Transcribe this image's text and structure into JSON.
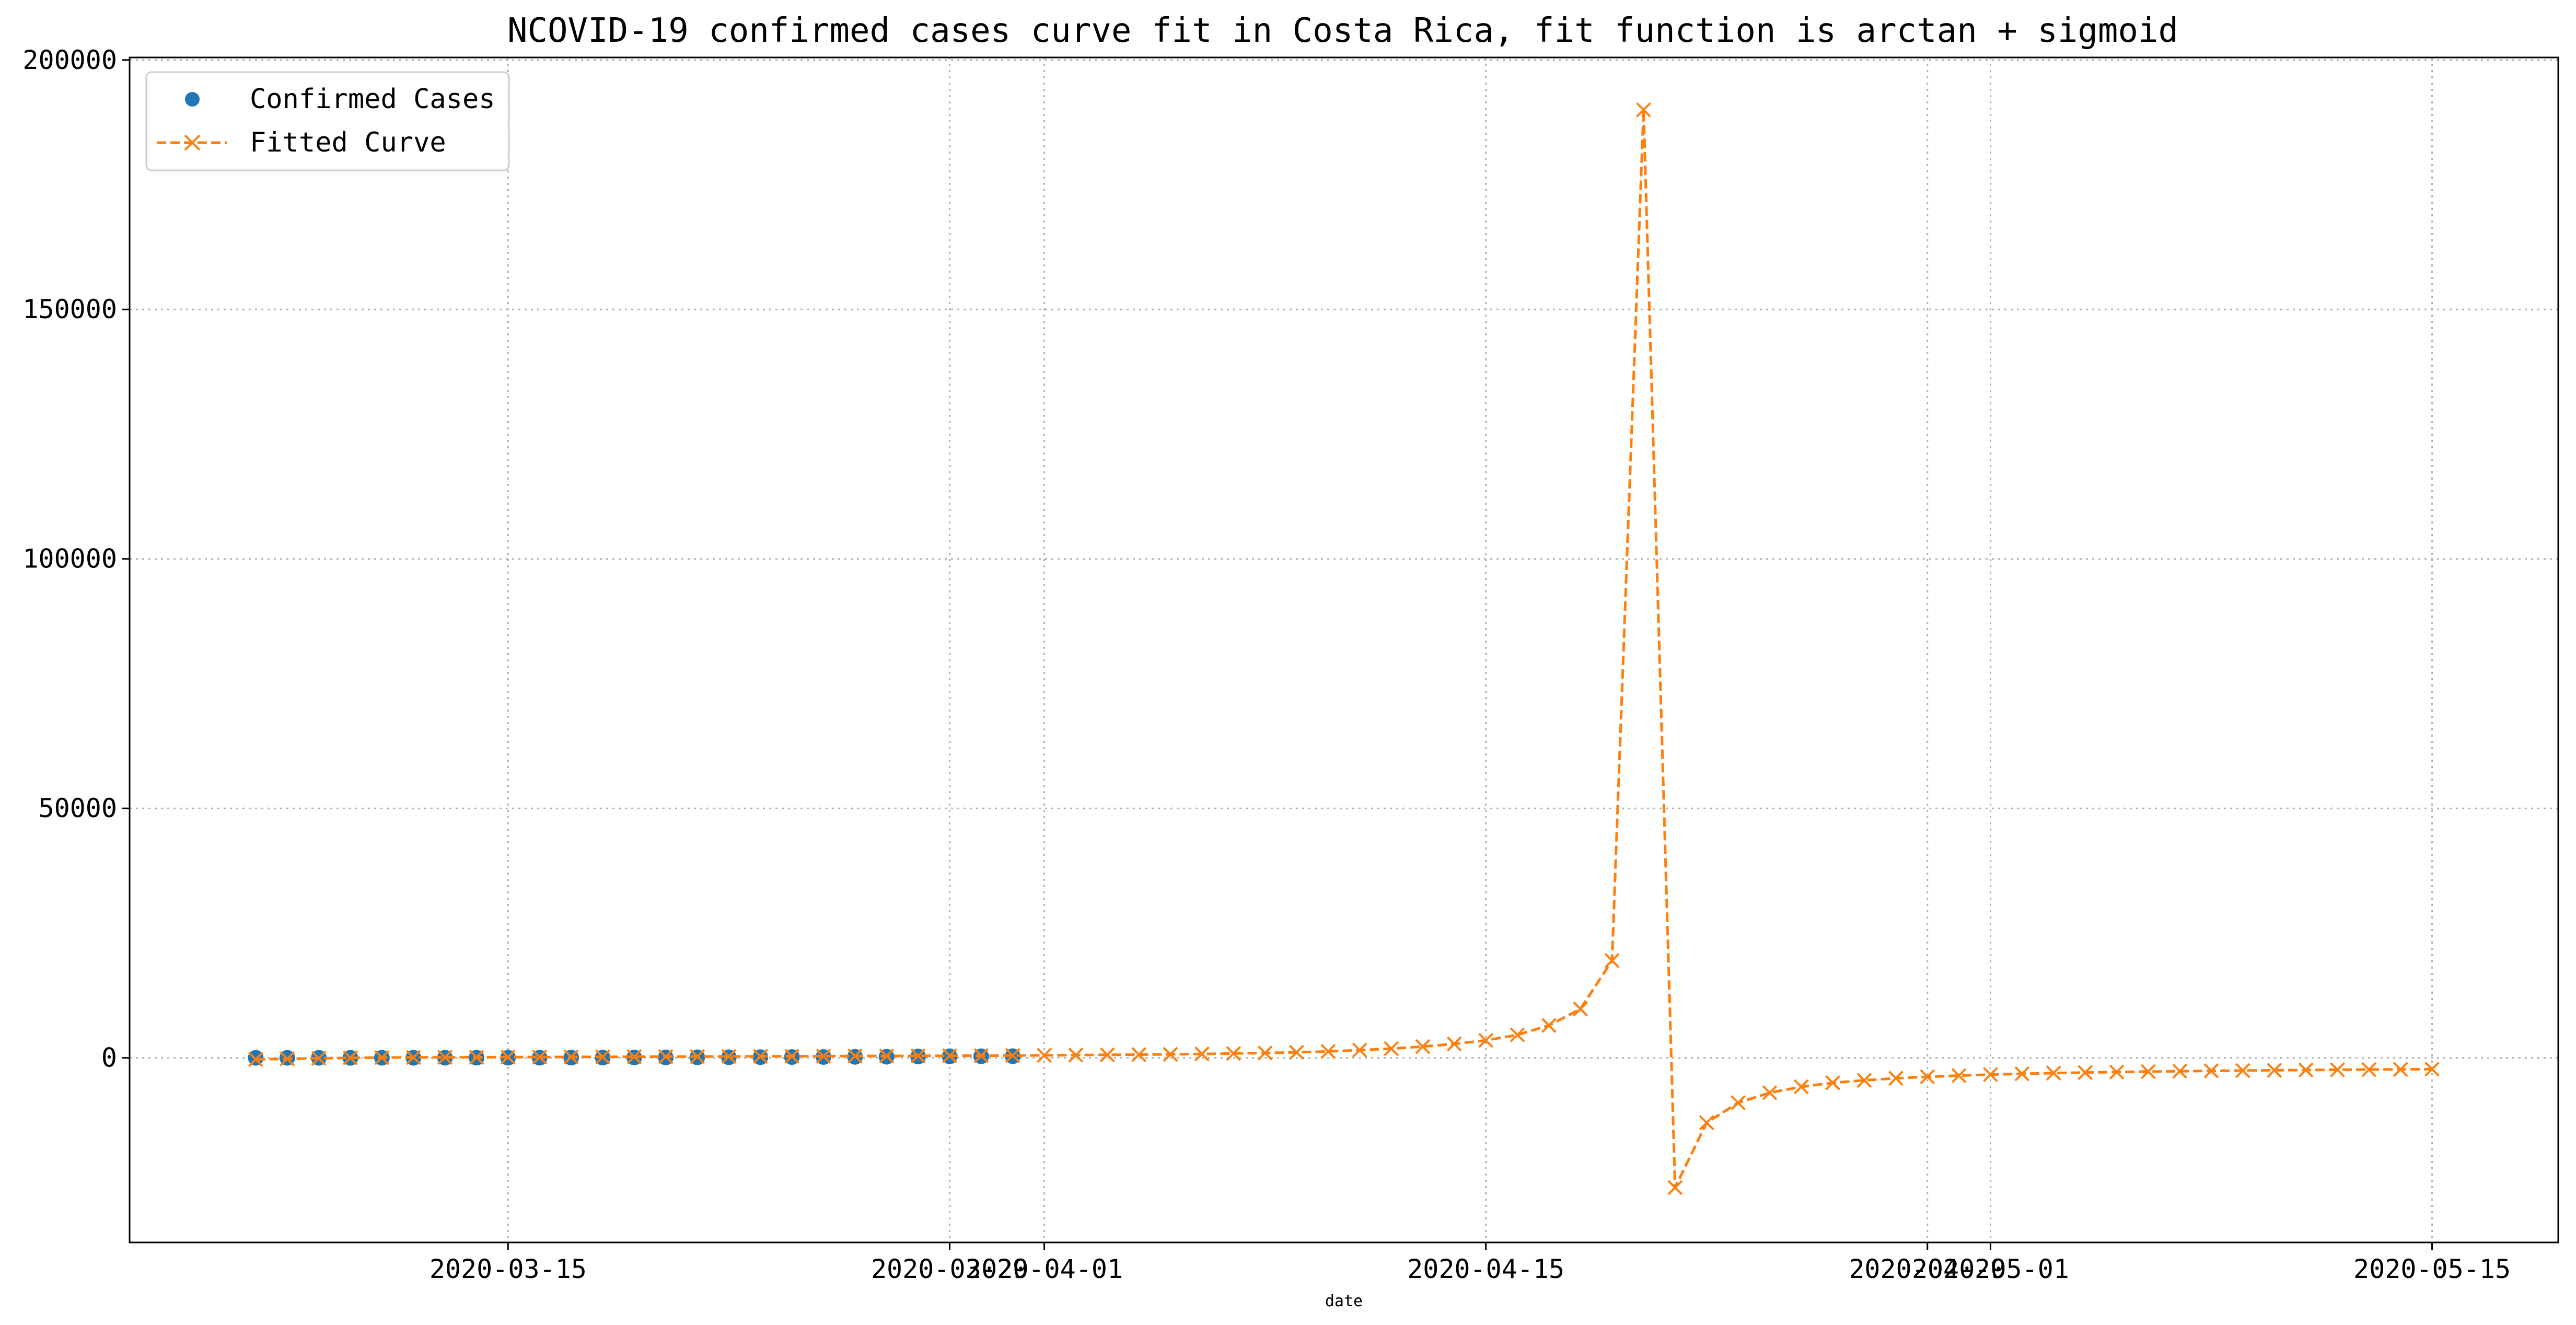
{
  "chart_data": {
    "type": "line",
    "title": "NCOVID-19 confirmed cases curve fit in Costa Rica, fit function is arctan + sigmoid",
    "xlabel": "date",
    "ylabel": "",
    "x_ticks": [
      "2020-03-15",
      "2020-03-29",
      "2020-04-01",
      "2020-04-15",
      "2020-04-29",
      "2020-05-01",
      "2020-05-15"
    ],
    "y_ticks": [
      "0",
      "50000",
      "100000",
      "150000",
      "200000"
    ],
    "xlim": [
      "2020-03-03",
      "2020-05-19"
    ],
    "ylim": [
      -37000,
      200500
    ],
    "grid": true,
    "grid_style": "dotted",
    "legend_position": "top-left",
    "series": [
      {
        "name": "Confirmed Cases",
        "style": "markers",
        "marker": "circle",
        "color": "#1f77b4",
        "x": [
          "2020-03-07",
          "2020-03-08",
          "2020-03-09",
          "2020-03-10",
          "2020-03-11",
          "2020-03-12",
          "2020-03-13",
          "2020-03-14",
          "2020-03-15",
          "2020-03-16",
          "2020-03-17",
          "2020-03-18",
          "2020-03-19",
          "2020-03-20",
          "2020-03-21",
          "2020-03-22",
          "2020-03-23",
          "2020-03-24",
          "2020-03-25",
          "2020-03-26",
          "2020-03-27",
          "2020-03-28",
          "2020-03-29",
          "2020-03-30",
          "2020-03-31"
        ],
        "y": [
          1,
          5,
          9,
          9,
          13,
          22,
          23,
          26,
          27,
          35,
          41,
          50,
          69,
          87,
          113,
          117,
          134,
          158,
          177,
          201,
          231,
          263,
          295,
          314,
          330
        ]
      },
      {
        "name": "Fitted Curve",
        "style": "dashed line with x markers",
        "marker": "x",
        "color": "#ff7f0e",
        "x": [
          "2020-03-07",
          "2020-03-08",
          "2020-03-09",
          "2020-03-10",
          "2020-03-11",
          "2020-03-12",
          "2020-03-13",
          "2020-03-14",
          "2020-03-15",
          "2020-03-16",
          "2020-03-17",
          "2020-03-18",
          "2020-03-19",
          "2020-03-20",
          "2020-03-21",
          "2020-03-22",
          "2020-03-23",
          "2020-03-24",
          "2020-03-25",
          "2020-03-26",
          "2020-03-27",
          "2020-03-28",
          "2020-03-29",
          "2020-03-30",
          "2020-03-31",
          "2020-04-01",
          "2020-04-02",
          "2020-04-03",
          "2020-04-04",
          "2020-04-05",
          "2020-04-06",
          "2020-04-07",
          "2020-04-08",
          "2020-04-09",
          "2020-04-10",
          "2020-04-11",
          "2020-04-12",
          "2020-04-13",
          "2020-04-14",
          "2020-04-15",
          "2020-04-16",
          "2020-04-17",
          "2020-04-18",
          "2020-04-19",
          "2020-04-20",
          "2020-04-21",
          "2020-04-22",
          "2020-04-23",
          "2020-04-24",
          "2020-04-25",
          "2020-04-26",
          "2020-04-27",
          "2020-04-28",
          "2020-04-29",
          "2020-04-30",
          "2020-05-01",
          "2020-05-02",
          "2020-05-03",
          "2020-05-04",
          "2020-05-05",
          "2020-05-06",
          "2020-05-07",
          "2020-05-08",
          "2020-05-09",
          "2020-05-10",
          "2020-05-11",
          "2020-05-12",
          "2020-05-13",
          "2020-05-14",
          "2020-05-15"
        ],
        "y": [
          -300,
          -200,
          -100,
          0,
          50,
          80,
          100,
          120,
          140,
          160,
          180,
          200,
          220,
          240,
          260,
          280,
          300,
          320,
          340,
          360,
          380,
          400,
          420,
          440,
          460,
          500,
          550,
          600,
          650,
          700,
          780,
          870,
          980,
          1100,
          1300,
          1550,
          1850,
          2250,
          2800,
          3500,
          4600,
          6500,
          9800,
          19500,
          190000,
          -26000,
          -13000,
          -9000,
          -7000,
          -5800,
          -5000,
          -4500,
          -4100,
          -3800,
          -3550,
          -3350,
          -3200,
          -3050,
          -2950,
          -2850,
          -2750,
          -2680,
          -2610,
          -2550,
          -2490,
          -2440,
          -2390,
          -2350,
          -2310,
          -2270
        ]
      }
    ]
  }
}
